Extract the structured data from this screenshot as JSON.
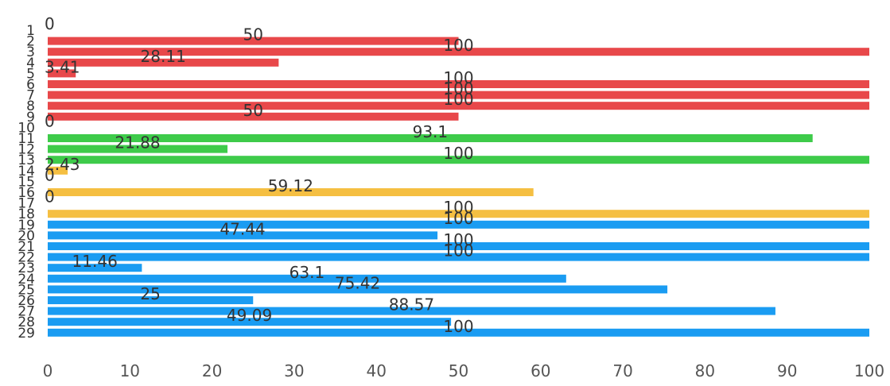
{
  "chart_data": {
    "type": "bar",
    "orientation": "horizontal",
    "categories": [
      "1",
      "2",
      "3",
      "4",
      "5",
      "6",
      "7",
      "8",
      "9",
      "10",
      "11",
      "12",
      "13",
      "14",
      "15",
      "16",
      "17",
      "18",
      "19",
      "20",
      "21",
      "22",
      "23",
      "24",
      "25",
      "26",
      "27",
      "28",
      "29"
    ],
    "values": [
      0,
      50,
      100,
      28.11,
      3.41,
      100,
      100,
      100,
      50,
      0,
      93.1,
      21.88,
      100,
      2.43,
      0,
      59.12,
      0,
      100,
      100,
      47.44,
      100,
      100,
      11.46,
      63.1,
      75.42,
      25,
      88.57,
      49.09,
      100
    ],
    "colors": [
      "#e8484a",
      "#e8484a",
      "#e8484a",
      "#e8484a",
      "#e8484a",
      "#e8484a",
      "#e8484a",
      "#e8484a",
      "#e8484a",
      "#3ecb4a",
      "#3ecb4a",
      "#3ecb4a",
      "#3ecb4a",
      "#f5bf42",
      "#f5bf42",
      "#f5bf42",
      "#f5bf42",
      "#f5bf42",
      "#1a9cf2",
      "#1a9cf2",
      "#1a9cf2",
      "#1a9cf2",
      "#1a9cf2",
      "#1a9cf2",
      "#1a9cf2",
      "#1a9cf2",
      "#1a9cf2",
      "#1a9cf2",
      "#1a9cf2"
    ],
    "data_labels": [
      "0",
      "50",
      "100",
      "28.11",
      "3.41",
      "100",
      "100",
      "100",
      "50",
      "0",
      "93.1",
      "21.88",
      "100",
      "2.43",
      "0",
      "59.12",
      "0",
      "100",
      "100",
      "47.44",
      "100",
      "100",
      "11.46",
      "63.1",
      "75.42",
      "25",
      "88.57",
      "49.09",
      "100"
    ],
    "xticks": [
      "0",
      "10",
      "20",
      "30",
      "40",
      "50",
      "60",
      "70",
      "80",
      "90",
      "100"
    ],
    "xlim": [
      0,
      100
    ],
    "title": "",
    "xlabel": "",
    "ylabel": "",
    "grid": false,
    "legend": "none"
  }
}
